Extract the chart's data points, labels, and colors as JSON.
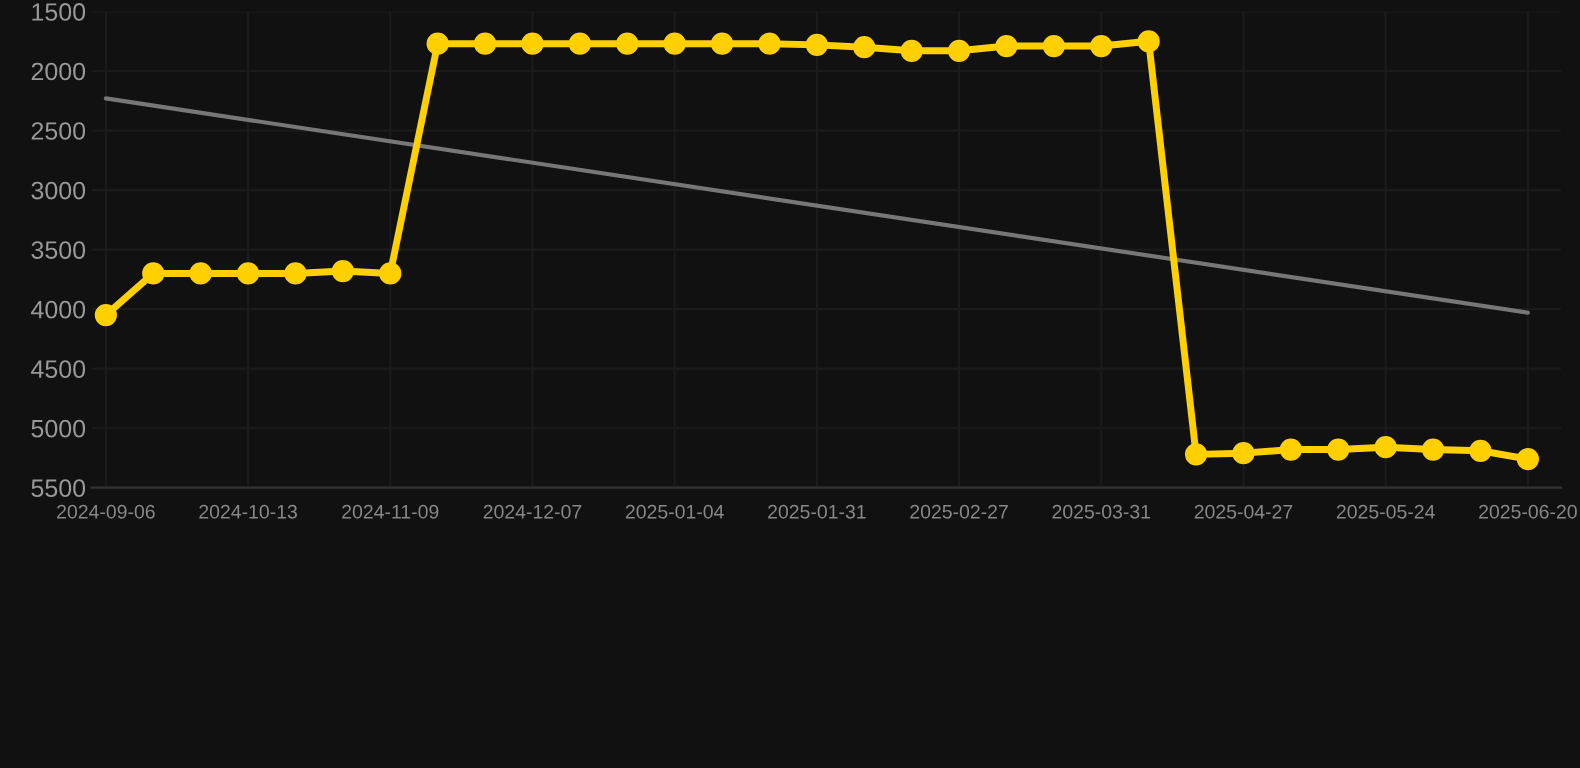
{
  "chart_data": {
    "type": "line",
    "categories": [
      "2024-09-06",
      null,
      null,
      "2024-10-13",
      null,
      null,
      "2024-11-09",
      null,
      null,
      "2024-12-07",
      null,
      null,
      "2025-01-04",
      null,
      null,
      "2025-01-31",
      null,
      null,
      "2025-02-27",
      null,
      null,
      "2025-03-31",
      null,
      null,
      "2025-04-27",
      null,
      null,
      "2025-05-24",
      null,
      null,
      "2025-06-20"
    ],
    "series": [
      {
        "color": "#ffd000",
        "marker": "circle",
        "values": [
          4050,
          3700,
          3700,
          3700,
          3700,
          3680,
          3700,
          1770,
          1770,
          1770,
          1770,
          1770,
          1770,
          1770,
          1770,
          1780,
          1800,
          1830,
          1830,
          1790,
          1790,
          1790,
          1750,
          5220,
          5210,
          5180,
          5180,
          5160,
          5180,
          5190,
          5260
        ]
      },
      {
        "color": "#777777",
        "marker": "none",
        "values": [
          2230,
          null,
          null,
          null,
          null,
          null,
          null,
          null,
          null,
          null,
          null,
          null,
          null,
          null,
          null,
          null,
          null,
          null,
          null,
          null,
          null,
          null,
          null,
          null,
          null,
          null,
          null,
          null,
          null,
          null,
          4030
        ]
      }
    ],
    "ylim": [
      5500,
      1500
    ],
    "yticks": [
      1500,
      2000,
      2500,
      3000,
      3500,
      4000,
      4500,
      5000,
      5500
    ],
    "grid": true,
    "line_style": "solid"
  }
}
